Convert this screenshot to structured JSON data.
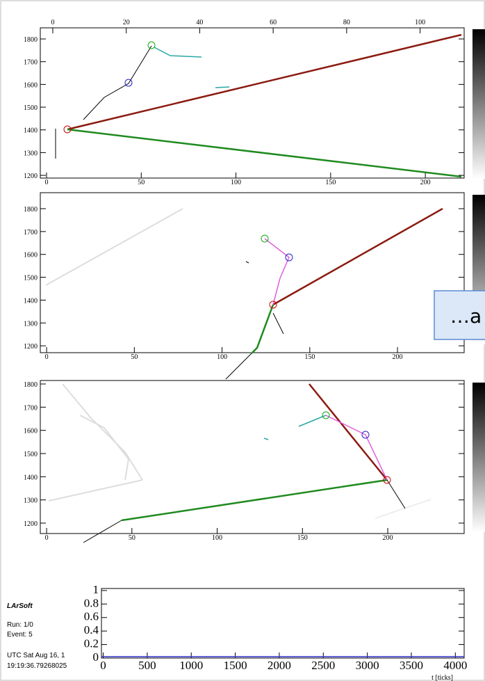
{
  "panels": [
    {
      "top_ticks": [
        0,
        20,
        40,
        60,
        80,
        100
      ],
      "top_lim": [
        -3.4,
        112
      ],
      "x_ticks": [
        0,
        50,
        100,
        150,
        200
      ],
      "x_lim": [
        -3.3,
        220.5
      ],
      "y_ticks": [
        1200,
        1300,
        1400,
        1500,
        1600,
        1700,
        1800
      ],
      "y_lim": [
        1188,
        1849
      ]
    },
    {
      "x_ticks": [
        0,
        50,
        100,
        150,
        200
      ],
      "x_lim": [
        -3.6,
        238
      ],
      "y_ticks": [
        1200,
        1300,
        1400,
        1500,
        1600,
        1700,
        1800
      ],
      "y_lim": [
        1170,
        1870
      ]
    },
    {
      "x_ticks": [
        0,
        50,
        100,
        150,
        200
      ],
      "x_lim": [
        -3.7,
        244.8
      ],
      "y_ticks": [
        1200,
        1300,
        1400,
        1500,
        1600,
        1700,
        1800
      ],
      "y_lim": [
        1155,
        1815
      ]
    }
  ],
  "callout": "…a",
  "info": {
    "title": "LArSoft",
    "run": "Run:  1/0",
    "event": "Event: 5",
    "date": "UTC Sat Aug 16, 1",
    "time": "19:19:36.79268025"
  },
  "waveform": {
    "y_ticks": [
      0,
      0.2,
      0.4,
      0.6,
      0.8,
      1
    ],
    "y_lim": [
      0,
      1.03
    ],
    "x_ticks": [
      0,
      500,
      1000,
      1500,
      2000,
      2500,
      3000,
      3500,
      4000
    ],
    "x_lim": [
      -20,
      4100
    ],
    "x_label": "t [ticks]"
  }
}
